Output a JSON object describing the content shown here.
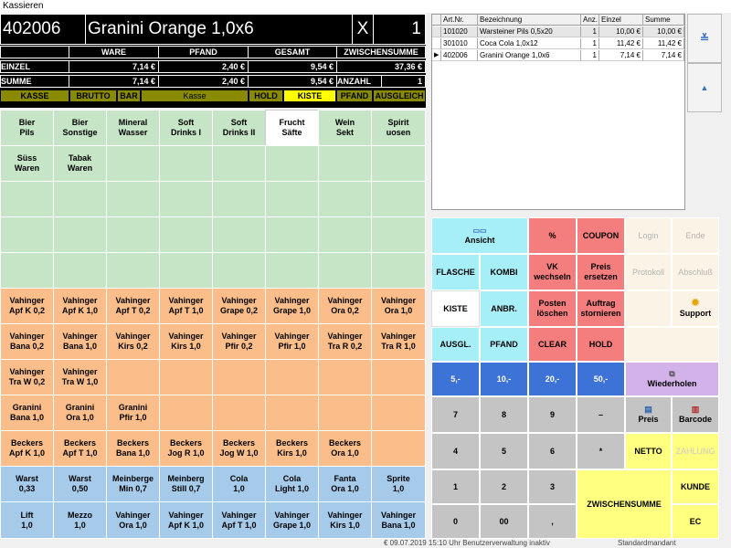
{
  "window": {
    "title": "Kassieren"
  },
  "header": {
    "article_no": "402006",
    "article_name": "Granini Orange 1,0x6",
    "clear_symbol": "X",
    "quantity": "1",
    "col_ware": "WARE",
    "col_pfand": "PFAND",
    "col_gesamt": "GESAMT",
    "col_zwischensumme": "ZWISCHENSUMME",
    "row_einzel": "EINZEL",
    "row_summe": "SUMME",
    "einzel_ware": "7,14 €",
    "einzel_pfand": "2,40 €",
    "einzel_gesamt": "9,54 €",
    "zwischensumme": "37,36 €",
    "summe_ware": "7,14 €",
    "summe_pfand": "2,40 €",
    "summe_gesamt": "9,54 €",
    "anzahl_label": "ANZAHL",
    "anzahl_value": "1"
  },
  "status": [
    "KASSE",
    "BRUTTO",
    "BAR",
    "Kasse",
    "HOLD",
    "KISTE",
    "PFAND",
    "AUSGLEICH"
  ],
  "colors": {
    "status_olive": "#8a8a00",
    "status_yellow": "#ffff00",
    "green": "#c6e4c6",
    "orange": "#fbbe8a",
    "blue": "#a6cbea"
  },
  "groups": [
    "Bier\nPils",
    "Bier\nSonstige",
    "Mineral\nWasser",
    "Soft\nDrinks I",
    "Soft\nDrinks II",
    "Frucht\nSäfte",
    "Wein\nSekt",
    "Spirit\nuosen",
    "Süss\nWaren",
    "Tabak\nWaren"
  ],
  "products": [
    [
      "Vahinger\nApf K 0,2",
      "Vahinger\nApf K 1,0",
      "Vahinger\nApf T 0,2",
      "Vahinger\nApf T 1,0",
      "Vahinger\nGrape 0,2",
      "Vahinger\nGrape 1,0",
      "Vahinger\nOra 0,2",
      "Vahinger\nOra 1,0"
    ],
    [
      "Vahinger\nBana 0,2",
      "Vahinger\nBana 1,0",
      "Vahinger\nKirs 0,2",
      "Vahinger\nKirs 1,0",
      "Vahinger\nPfir 0,2",
      "Vahinger\nPfir 1,0",
      "Vahinger\nTra R 0,2",
      "Vahinger\nTra R 1,0"
    ],
    [
      "Vahinger\nTra W 0,2",
      "Vahinger\nTra W 1,0",
      "",
      "",
      "",
      "",
      "",
      ""
    ],
    [
      "Granini\nBana 1,0",
      "Granini\nOra 1,0",
      "Granini\nPfir 1,0",
      "",
      "",
      "",
      "",
      ""
    ],
    [
      "Beckers\nApf K 1,0",
      "Beckers\nApf T 1,0",
      "Beckers\nBana 1,0",
      "Beckers\nJog R 1,0",
      "Beckers\nJog W 1,0",
      "Beckers\nKirs 1,0",
      "Beckers\nOra 1,0",
      ""
    ],
    [
      "Warst\n0,33",
      "Warst\n0,50",
      "Meinberge\nMin 0,7",
      "Meinberg\nStill 0,7",
      "Cola\n1,0",
      "Cola\nLight 1,0",
      "Fanta\nOra 1,0",
      "Sprite\n1,0"
    ],
    [
      "Lift\n1,0",
      "Mezzo\n1,0",
      "Vahinger\nOra 1,0",
      "Vahinger\nApf K 1,0",
      "Vahinger\nApf T 1,0",
      "Vahinger\nGrape 1,0",
      "Vahinger\nKirs 1,0",
      "Vahinger\nBana 1,0"
    ]
  ],
  "receipt": {
    "headers": [
      "Art.Nr.",
      "Bezeichnung",
      "Anz.",
      "Einzel",
      "Summe"
    ],
    "rows": [
      [
        "101020",
        "Warsteiner Pils 0,5x20",
        "1",
        "10,00 €",
        "10,00 €"
      ],
      [
        "301010",
        "Coca Cola 1,0x12",
        "1",
        "11,42 €",
        "11,42 €"
      ],
      [
        "402006",
        "Granini Orange 1,0x6",
        "1",
        "7,14 €",
        "7,14 €"
      ]
    ],
    "selected_marker": "▶"
  },
  "scroll": {
    "top_icon": "≚",
    "up_icon": "▲"
  },
  "functions": {
    "ansicht": "Ansicht",
    "percent": "%",
    "coupon": "COUPON",
    "login": "Login",
    "ende": "Ende",
    "flasche": "FLASCHE",
    "kombi": "KOMBI",
    "vk_wechseln": "VK\nwechseln",
    "preis_ersetzen": "Preis\nersetzen",
    "protokoll": "Protokoll",
    "abschluss": "Abschluß",
    "kiste": "KISTE",
    "anbr": "ANBR.",
    "posten_loeschen": "Posten\nlöschen",
    "auftrag_stornieren": "Auftrag\nstornieren",
    "support": "Support",
    "ausgl": "AUSGL.",
    "pfand": "PFAND",
    "clear": "CLEAR",
    "hold": "HOLD",
    "m5": "5,-",
    "m10": "10,-",
    "m20": "20,-",
    "m50": "50,-",
    "wiederholen": "Wiederholen",
    "k7": "7",
    "k8": "8",
    "k9": "9",
    "minus": "–",
    "preis": "Preis",
    "barcode": "Barcode",
    "k4": "4",
    "k5": "5",
    "k6": "6",
    "times": "*",
    "netto": "NETTO",
    "zahlung": "ZAHLUNG",
    "k1": "1",
    "k2": "2",
    "k3": "3",
    "zwischensumme": "ZWISCHENSUMME",
    "kunde": "KUNDE",
    "k0": "0",
    "k00": "00",
    "comma": ",",
    "ec": "EC"
  },
  "statusbar": {
    "date": "€   09.07.2019   15:10 Uhr   Benutzerverwaltung inaktiv",
    "mandant": "Standardmandant"
  }
}
